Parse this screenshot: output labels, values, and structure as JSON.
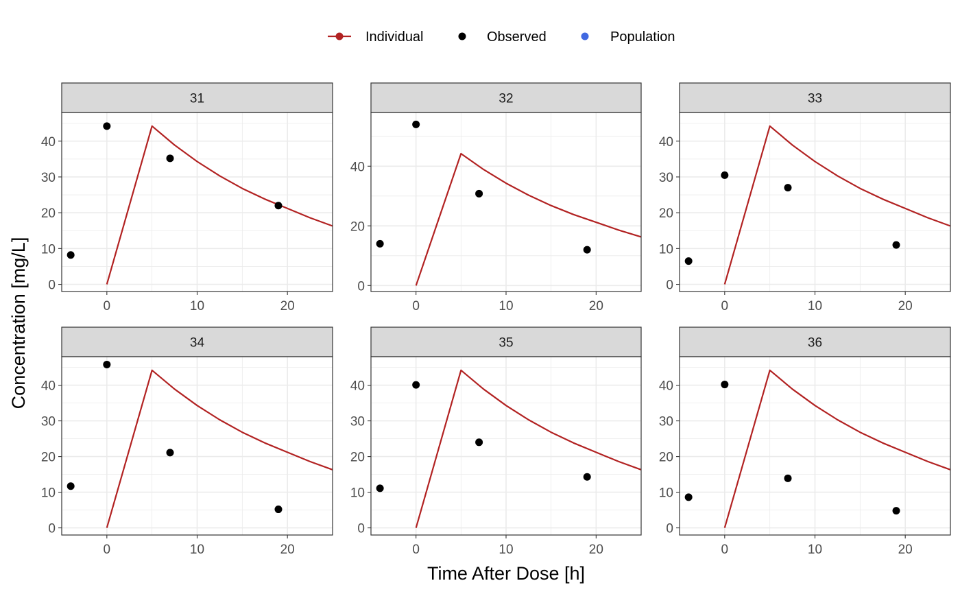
{
  "legend": {
    "items": [
      {
        "label": "Individual",
        "color": "#b22222",
        "kind": "line-point"
      },
      {
        "label": "Observed",
        "color": "#000000",
        "kind": "point"
      },
      {
        "label": "Population",
        "color": "#4169e1",
        "kind": "point"
      }
    ]
  },
  "axes": {
    "xlabel": "Time After Dose [h]",
    "ylabel": "Concentration [mg/L]"
  },
  "chart_data": {
    "type": "scatter",
    "facet_by": "ID",
    "xlabel": "Time After Dose [h]",
    "ylabel": "Concentration [mg/L]",
    "xlim": [
      -5,
      25
    ],
    "xticks": [
      0,
      10,
      20
    ],
    "grid": true,
    "legend_position": "top",
    "individual_curve": {
      "x": [
        0,
        5,
        7.5,
        10,
        12.5,
        15,
        17.5,
        20,
        22.5,
        25
      ],
      "y": [
        0,
        44.2,
        38.9,
        34.3,
        30.3,
        26.8,
        23.8,
        21.2,
        18.6,
        16.3
      ]
    },
    "panels": [
      {
        "id": "31",
        "ylim": [
          -2,
          48
        ],
        "yticks": [
          0,
          10,
          20,
          30,
          40
        ],
        "observed": {
          "x": [
            -4,
            0,
            7,
            19
          ],
          "y": [
            8.2,
            44.2,
            35.2,
            22.0
          ]
        }
      },
      {
        "id": "32",
        "ylim": [
          -2,
          58
        ],
        "yticks": [
          0,
          20,
          40
        ],
        "observed": {
          "x": [
            -4,
            0,
            7,
            19
          ],
          "y": [
            14.0,
            54.0,
            30.8,
            12.0
          ]
        }
      },
      {
        "id": "33",
        "ylim": [
          -2,
          48
        ],
        "yticks": [
          0,
          10,
          20,
          30,
          40
        ],
        "observed": {
          "x": [
            -4,
            0,
            7,
            19
          ],
          "y": [
            6.5,
            30.5,
            27.0,
            11.0
          ]
        }
      },
      {
        "id": "34",
        "ylim": [
          -2,
          48
        ],
        "yticks": [
          0,
          10,
          20,
          30,
          40
        ],
        "observed": {
          "x": [
            -4,
            0,
            7,
            19
          ],
          "y": [
            11.7,
            45.8,
            21.1,
            5.2
          ]
        }
      },
      {
        "id": "35",
        "ylim": [
          -2,
          48
        ],
        "yticks": [
          0,
          10,
          20,
          30,
          40
        ],
        "observed": {
          "x": [
            -4,
            0,
            7,
            19
          ],
          "y": [
            11.1,
            40.1,
            24.0,
            14.3
          ]
        }
      },
      {
        "id": "36",
        "ylim": [
          -2,
          48
        ],
        "yticks": [
          0,
          10,
          20,
          30,
          40
        ],
        "observed": {
          "x": [
            -4,
            0,
            7,
            19
          ],
          "y": [
            8.6,
            40.2,
            13.9,
            4.8
          ]
        }
      }
    ]
  }
}
